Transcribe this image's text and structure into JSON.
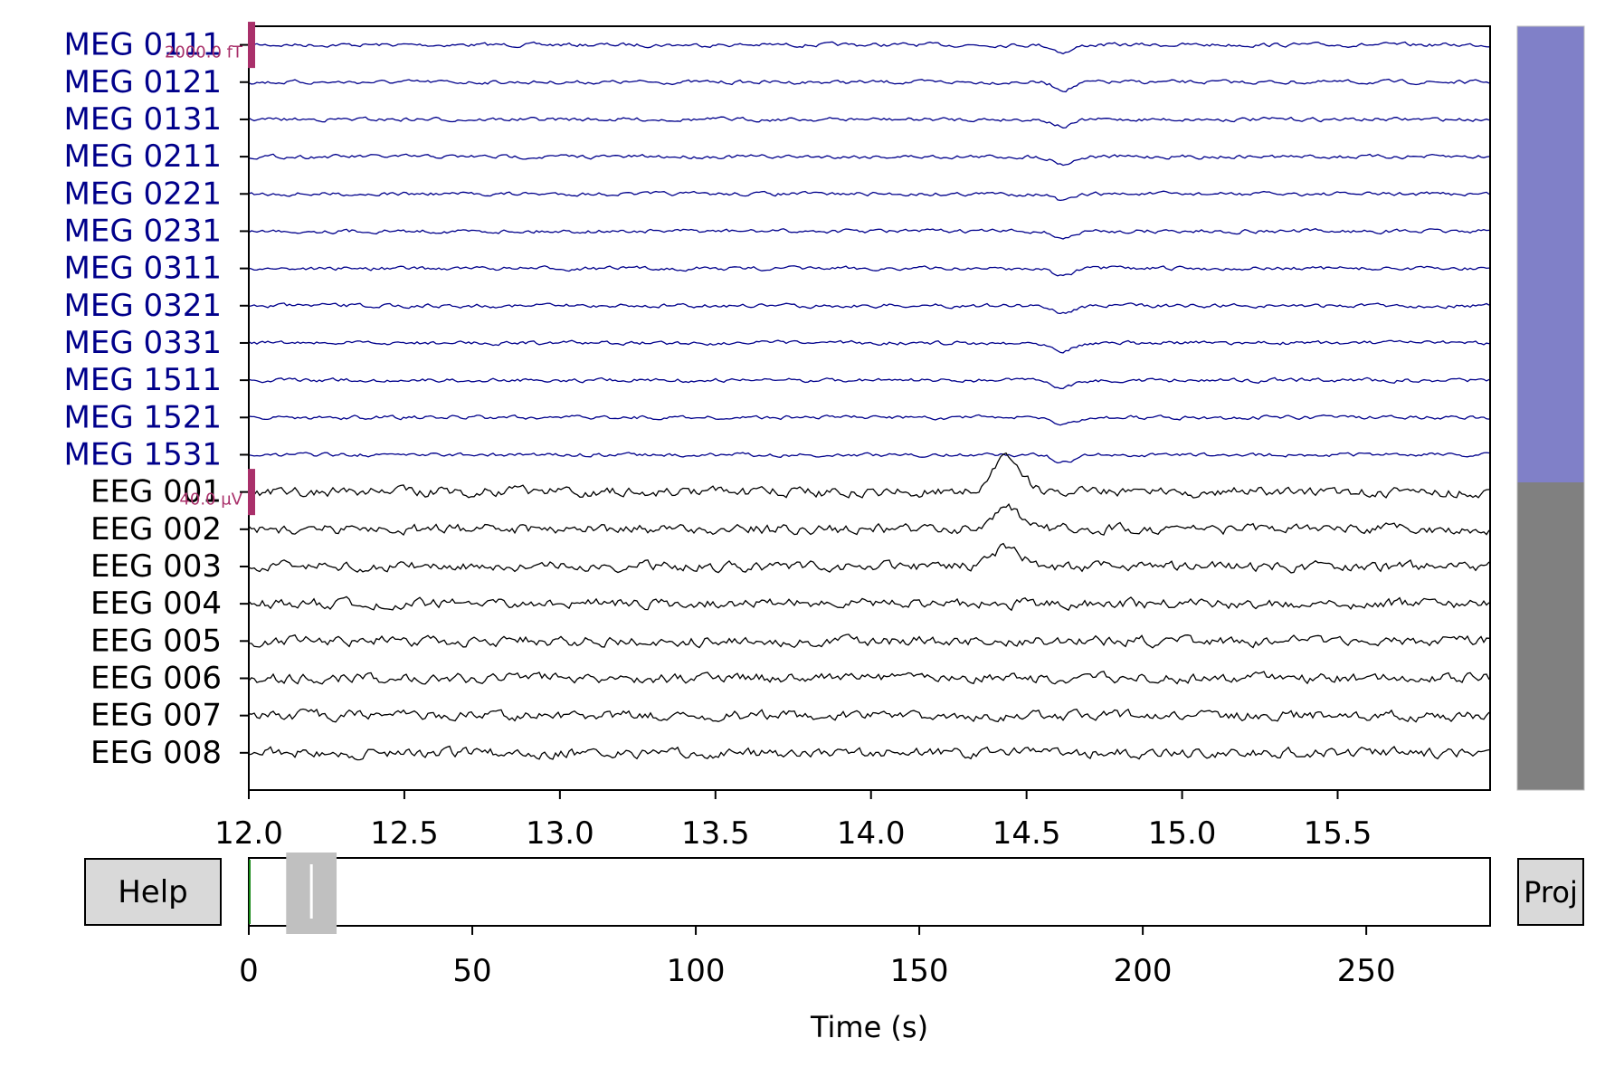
{
  "main_plot": {
    "channels": [
      {
        "name": "MEG 0111",
        "type": "meg"
      },
      {
        "name": "MEG 0121",
        "type": "meg"
      },
      {
        "name": "MEG 0131",
        "type": "meg"
      },
      {
        "name": "MEG 0211",
        "type": "meg"
      },
      {
        "name": "MEG 0221",
        "type": "meg"
      },
      {
        "name": "MEG 0231",
        "type": "meg"
      },
      {
        "name": "MEG 0311",
        "type": "meg"
      },
      {
        "name": "MEG 0321",
        "type": "meg"
      },
      {
        "name": "MEG 0331",
        "type": "meg"
      },
      {
        "name": "MEG 1511",
        "type": "meg"
      },
      {
        "name": "MEG 1521",
        "type": "meg"
      },
      {
        "name": "MEG 1531",
        "type": "meg"
      },
      {
        "name": "EEG 001",
        "type": "eeg"
      },
      {
        "name": "EEG 002",
        "type": "eeg"
      },
      {
        "name": "EEG 003",
        "type": "eeg"
      },
      {
        "name": "EEG 004",
        "type": "eeg"
      },
      {
        "name": "EEG 005",
        "type": "eeg"
      },
      {
        "name": "EEG 006",
        "type": "eeg"
      },
      {
        "name": "EEG 007",
        "type": "eeg"
      },
      {
        "name": "EEG 008",
        "type": "eeg"
      }
    ],
    "time_range": [
      12.0,
      15.99
    ],
    "x_ticks": [
      "12.0",
      "12.5",
      "13.0",
      "13.5",
      "14.0",
      "14.5",
      "15.0",
      "15.5"
    ],
    "scale_bars": {
      "meg": "2000.0 fT",
      "eeg": "40.0 µV"
    },
    "colors": {
      "meg": "#00008b",
      "eeg": "#000000",
      "scalebar": "#a9306a"
    }
  },
  "channel_group_bar": {
    "colors": {
      "meg": "#8080c8",
      "eeg": "#808080"
    }
  },
  "overview": {
    "x_ticks": [
      "0",
      "50",
      "100",
      "150",
      "200",
      "250"
    ],
    "xlabel": "Time (s)",
    "total_duration_s": 277.7,
    "view_window_s": [
      12.0,
      16.0
    ]
  },
  "buttons": {
    "help_label": "Help",
    "proj_label": "Proj"
  }
}
